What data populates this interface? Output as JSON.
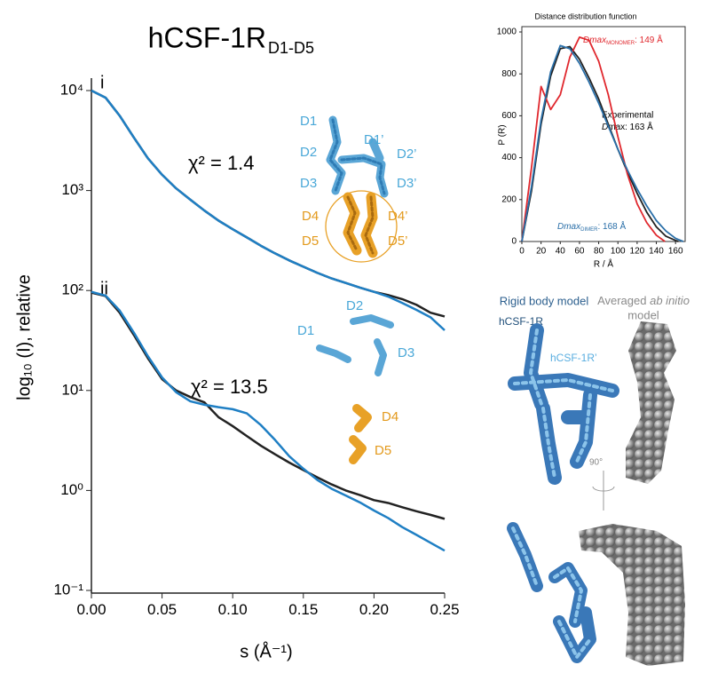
{
  "chart_data": [
    {
      "type": "line",
      "title": "hCSF-1R",
      "title_sub": "D1-D5",
      "x_label": "s (Å⁻¹)",
      "y_label": "log₁₀ (I), relative",
      "log_y": true,
      "xlim": [
        0,
        0.25
      ],
      "xticks": [
        {
          "value": 0,
          "label": "0.00"
        },
        0.05,
        {
          "value": 0.1,
          "label": "0.10"
        },
        0.15,
        {
          "value": 0.2,
          "label": "0.20"
        },
        0.25
      ],
      "ylim": [
        0.1,
        10000
      ],
      "yticks": [
        {
          "value": 0.1,
          "label": "10⁻¹"
        },
        {
          "value": 1,
          "label": "10⁰"
        },
        {
          "value": 10,
          "label": "10¹"
        },
        {
          "value": 100,
          "label": "10²"
        },
        {
          "value": 1000,
          "label": "10³"
        },
        {
          "value": 10000,
          "label": "10⁴"
        }
      ],
      "x": [
        0,
        0.01,
        0.02,
        0.03,
        0.04,
        0.05,
        0.06,
        0.07,
        0.08,
        0.09,
        0.1,
        0.11,
        0.12,
        0.13,
        0.14,
        0.15,
        0.16,
        0.17,
        0.18,
        0.19,
        0.2,
        0.21,
        0.22,
        0.23,
        0.24,
        0.25
      ],
      "series": [
        {
          "color": "#222222",
          "values": [
            10000,
            8500,
            5600,
            3400,
            2100,
            1440,
            1050,
            810,
            630,
            500,
            410,
            340,
            280,
            235,
            200,
            173,
            150,
            132,
            119,
            107,
            97,
            90,
            82,
            72,
            60,
            55
          ]
        },
        {
          "color": "#1f7fc4",
          "values": [
            10000,
            8500,
            5600,
            3400,
            2100,
            1440,
            1050,
            810,
            630,
            500,
            410,
            340,
            280,
            235,
            200,
            173,
            150,
            132,
            119,
            107,
            97,
            87,
            75,
            64,
            54,
            40
          ]
        },
        {
          "color": "#222222",
          "values": [
            95,
            88,
            60,
            36,
            21,
            13,
            10,
            8.6,
            7.6,
            5.4,
            4.4,
            3.5,
            2.8,
            2.3,
            1.9,
            1.6,
            1.35,
            1.15,
            1.0,
            0.9,
            0.8,
            0.75,
            0.68,
            0.62,
            0.57,
            0.52
          ]
        },
        {
          "color": "#1f7fc4",
          "values": [
            97,
            89,
            63,
            38,
            22,
            13.5,
            9.6,
            7.8,
            7.2,
            6.8,
            6.5,
            5.9,
            4.5,
            3.2,
            2.2,
            1.65,
            1.27,
            1.04,
            0.89,
            0.76,
            0.63,
            0.53,
            0.43,
            0.36,
            0.3,
            0.25
          ]
        }
      ],
      "annotations": {
        "curve_i": "i",
        "curve_ii": "ii",
        "chi_i": "χ² = 1.4",
        "chi_ii": "χ² = 13.5",
        "dimer_domains": [
          "D1",
          "D1’",
          "D2",
          "D2’",
          "D3",
          "D3’",
          "D4",
          "D4’",
          "D5",
          "D5’"
        ],
        "monomer_domains": [
          "D1",
          "D2",
          "D3",
          "D4",
          "D5"
        ]
      }
    },
    {
      "type": "line",
      "title": "Distance distribution function",
      "x_label": "R / Å",
      "y_label": "P (R)",
      "xlim": [
        0,
        170
      ],
      "xticks": [
        0,
        20,
        40,
        60,
        80,
        100,
        120,
        140,
        160
      ],
      "ylim": [
        0,
        1000
      ],
      "yticks": [
        0,
        200,
        400,
        600,
        800,
        1000
      ],
      "series": [
        {
          "color": "#222222",
          "x": [
            0,
            10,
            20,
            30,
            40,
            50,
            60,
            70,
            80,
            90,
            100,
            110,
            120,
            130,
            140,
            150,
            160,
            163
          ],
          "values": [
            0,
            240,
            560,
            790,
            920,
            930,
            870,
            780,
            680,
            560,
            440,
            330,
            230,
            140,
            70,
            25,
            5,
            0
          ]
        },
        {
          "color": "#e0282e",
          "x": [
            0,
            10,
            20,
            30,
            40,
            50,
            60,
            70,
            80,
            90,
            100,
            110,
            120,
            130,
            140,
            149
          ],
          "values": [
            0,
            350,
            740,
            630,
            700,
            880,
            975,
            960,
            860,
            700,
            500,
            320,
            180,
            90,
            30,
            0
          ]
        },
        {
          "color": "#2a6fa8",
          "x": [
            0,
            10,
            20,
            30,
            40,
            50,
            60,
            70,
            80,
            90,
            100,
            110,
            120,
            130,
            140,
            150,
            160,
            168
          ],
          "values": [
            0,
            260,
            580,
            810,
            935,
            920,
            850,
            760,
            660,
            550,
            440,
            340,
            250,
            170,
            100,
            50,
            15,
            0
          ]
        }
      ],
      "annotations": {
        "experimental": "Experimental",
        "exp_dmax": {
          "italic": "D",
          "rest": "max: 163 Å"
        },
        "monomer": {
          "name": "Dmax",
          "sub": "MONOMER",
          "tail": ": 149 Å"
        },
        "dimer": {
          "name": "Dmax",
          "sub": "DIMER",
          "tail": ": 168 Å"
        }
      }
    }
  ],
  "models": {
    "rigid_title": "Rigid body model",
    "abinitio_title": {
      "before": "Averaged",
      "italic": "ab initio",
      "line2": "model"
    },
    "chain_a": "hCSF-1R",
    "chain_b": "hCSF-1R’",
    "rotation": "90°"
  }
}
